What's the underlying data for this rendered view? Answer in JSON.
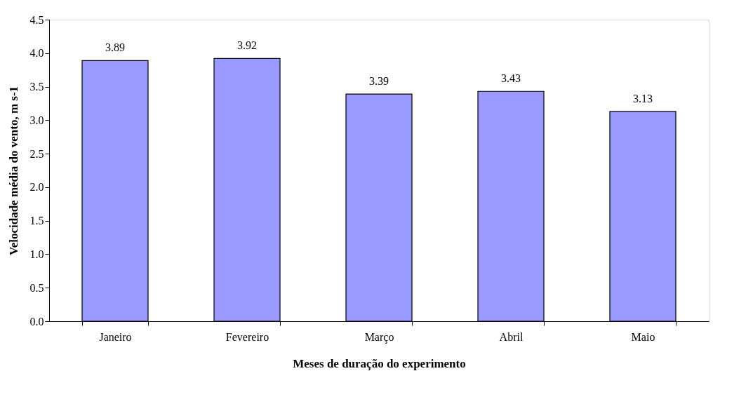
{
  "chart_data": {
    "type": "bar",
    "xlabel": "Meses de duração do experimento",
    "ylabel": "Velocidade média do vento, m s-1",
    "categories": [
      "Janeiro",
      "Fevereiro",
      "Março",
      "Abril",
      "Maio"
    ],
    "values": [
      3.89,
      3.92,
      3.39,
      3.43,
      3.13
    ],
    "color": "#9999ff",
    "ylim": [
      0,
      4.5
    ],
    "yticks": [
      {
        "value": 0,
        "label": "0.0"
      },
      {
        "value": 0.5,
        "label": "0.5"
      },
      {
        "value": 1,
        "label": "1.0"
      },
      {
        "value": 1.5,
        "label": "1.5"
      },
      {
        "value": 2,
        "label": "2.0"
      },
      {
        "value": 2.5,
        "label": "2.5"
      },
      {
        "value": 3,
        "label": "3.0"
      },
      {
        "value": 3.5,
        "label": "3.5"
      },
      {
        "value": 4,
        "label": "4.0"
      },
      {
        "value": 4.5,
        "label": "4.5"
      }
    ],
    "data_labels": true,
    "grid": false
  }
}
